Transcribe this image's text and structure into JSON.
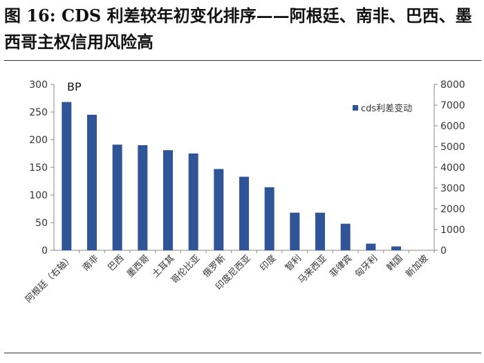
{
  "title": "图 16: CDS 利差较年初变化排序——阿根廷、南非、巴西、墨西哥主权信用风险高",
  "colors": {
    "bar": "#2F5597",
    "axis": "#888888",
    "text": "#333333"
  },
  "chart_data": {
    "type": "bar",
    "unit_label": "BP",
    "categories": [
      "阿根廷（右轴）",
      "南非",
      "巴西",
      "墨西哥",
      "土耳其",
      "哥伦比亚",
      "俄罗斯",
      "印度尼西亚",
      "印度",
      "智利",
      "马来西亚",
      "菲律宾",
      "匈牙利",
      "韩国",
      "新加坡"
    ],
    "series": [
      {
        "name": "cds利差变动",
        "values": [
          7150,
          245,
          191,
          190,
          181,
          175,
          147,
          133,
          114,
          68,
          68,
          48,
          12,
          7,
          0
        ],
        "axes": [
          "right",
          "left",
          "left",
          "left",
          "left",
          "left",
          "left",
          "left",
          "left",
          "left",
          "left",
          "left",
          "left",
          "left",
          "left"
        ]
      }
    ],
    "left_axis": {
      "ylim": [
        0,
        300
      ],
      "ticks": [
        "300",
        "250",
        "200",
        "150",
        "100",
        "50",
        "0"
      ]
    },
    "right_axis": {
      "ylim": [
        0,
        8000
      ],
      "ticks": [
        "8000",
        "7000",
        "6000",
        "5000",
        "4000",
        "3000",
        "2000",
        "1000",
        "0"
      ]
    },
    "legend_position": "top-right",
    "grid": false
  }
}
